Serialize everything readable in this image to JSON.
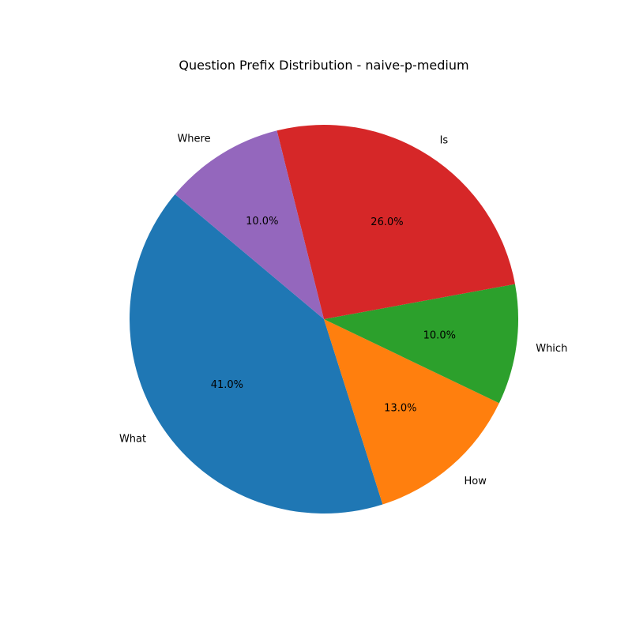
{
  "chart_data": {
    "type": "pie",
    "title": "Question Prefix Distribution - naive-p-medium",
    "start_angle_deg": 140,
    "direction": "counterclockwise",
    "slices": [
      {
        "label": "What",
        "value": 41.0,
        "pct_text": "41.0%",
        "color": "#1f77b4"
      },
      {
        "label": "How",
        "value": 13.0,
        "pct_text": "13.0%",
        "color": "#ff7f0e"
      },
      {
        "label": "Which",
        "value": 10.0,
        "pct_text": "10.0%",
        "color": "#2ca02c"
      },
      {
        "label": "Is",
        "value": 26.0,
        "pct_text": "26.0%",
        "color": "#d62728"
      },
      {
        "label": "Where",
        "value": 10.0,
        "pct_text": "10.0%",
        "color": "#9467bd"
      }
    ]
  }
}
